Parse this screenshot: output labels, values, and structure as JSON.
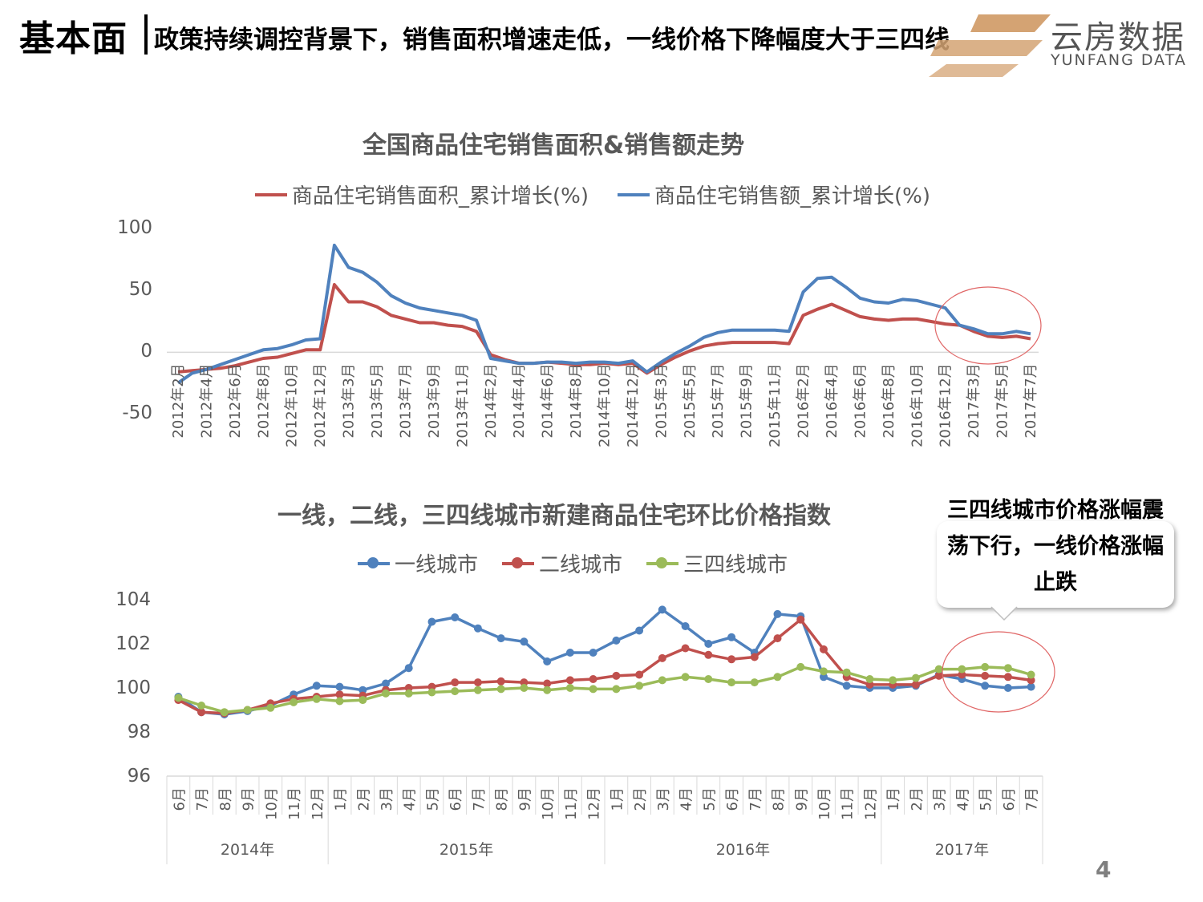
{
  "header": {
    "main_title": "基本面",
    "subtitle": "政策持续调控背景下，销售面积增速走低，一线价格下降幅度大于三四线"
  },
  "logo": {
    "cn": "云房数据",
    "en": "YUNFANG DATA",
    "brand_color": "#d4a373"
  },
  "callout": {
    "text": "三四线城市价格涨幅震荡下行，一线价格涨幅止跌"
  },
  "page_number": "4",
  "chart_data": [
    {
      "type": "line",
      "title": "全国商品住宅销售面积&销售额走势",
      "ylim": [
        -50,
        100
      ],
      "yticks": [
        "100",
        "50",
        "0",
        "-50"
      ],
      "categories": [
        "2012年2月",
        "2012年3月",
        "2012年4月",
        "2012年5月",
        "2012年6月",
        "2012年7月",
        "2012年8月",
        "2012年9月",
        "2012年10月",
        "2012年11月",
        "2012年12月",
        "2013年2月",
        "2013年3月",
        "2013年4月",
        "2013年5月",
        "2013年6月",
        "2013年7月",
        "2013年8月",
        "2013年9月",
        "2013年10月",
        "2013年11月",
        "2013年12月",
        "2014年2月",
        "2014年3月",
        "2014年4月",
        "2014年5月",
        "2014年6月",
        "2014年7月",
        "2014年8月",
        "2014年9月",
        "2014年10月",
        "2014年11月",
        "2014年12月",
        "2015年2月",
        "2015年3月",
        "2015年4月",
        "2015年5月",
        "2015年6月",
        "2015年7月",
        "2015年8月",
        "2015年9月",
        "2015年10月",
        "2015年11月",
        "2015年12月",
        "2016年2月",
        "2016年3月",
        "2016年4月",
        "2016年5月",
        "2016年6月",
        "2016年7月",
        "2016年8月",
        "2016年9月",
        "2016年10月",
        "2016年11月",
        "2016年12月",
        "2017年2月",
        "2017年3月",
        "2017年4月",
        "2017年5月",
        "2017年6月",
        "2017年7月"
      ],
      "tick_labels": [
        "2012年2月",
        "2012年4月",
        "2012年6月",
        "2012年8月",
        "2012年10月",
        "2012年12月",
        "2013年3月",
        "2013年5月",
        "2013年7月",
        "2013年9月",
        "2013年11月",
        "2014年2月",
        "2014年4月",
        "2014年6月",
        "2014年8月",
        "2014年10月",
        "2014年12月",
        "2015年3月",
        "2015年5月",
        "2015年7月",
        "2015年9月",
        "2015年11月",
        "2016年2月",
        "2016年4月",
        "2016年6月",
        "2016年8月",
        "2016年10月",
        "2016年12月",
        "2017年3月",
        "2017年5月",
        "2017年7月"
      ],
      "series": [
        {
          "name": "商品住宅销售面积_累计增长(%)",
          "color": "#c0504d",
          "values": [
            -16,
            -15,
            -14,
            -13,
            -11,
            -8,
            -5,
            -4,
            -1,
            2,
            2,
            55,
            41,
            41,
            37,
            30,
            27,
            24,
            24,
            22,
            21,
            17,
            -2,
            -6,
            -9,
            -9,
            -8,
            -9,
            -10,
            -10,
            -9,
            -10,
            -9,
            -17,
            -10,
            -4,
            1,
            5,
            7,
            8,
            8,
            8,
            8,
            7,
            30,
            35,
            39,
            34,
            29,
            27,
            26,
            27,
            27,
            25,
            23,
            22,
            17,
            13,
            12,
            13,
            11
          ]
        },
        {
          "name": "商品住宅销售额_累计增长(%)",
          "color": "#4f81bd",
          "values": [
            -25,
            -17,
            -14,
            -10,
            -6,
            -2,
            2,
            3,
            6,
            10,
            11,
            87,
            69,
            65,
            57,
            46,
            40,
            36,
            34,
            32,
            30,
            26,
            -5,
            -7,
            -9,
            -9,
            -8,
            -8,
            -9,
            -8,
            -8,
            -9,
            -7,
            -16,
            -8,
            -1,
            5,
            12,
            16,
            18,
            18,
            18,
            18,
            17,
            49,
            60,
            61,
            53,
            44,
            41,
            40,
            43,
            42,
            39,
            36,
            22,
            19,
            15,
            15,
            17,
            15
          ]
        }
      ]
    },
    {
      "type": "line",
      "title": "一线，二线，三四线城市新建商品住宅环比价格指数",
      "ylim": [
        96,
        104
      ],
      "yticks": [
        "104",
        "102",
        "100",
        "98",
        "96"
      ],
      "months": [
        "6月",
        "7月",
        "8月",
        "9月",
        "10月",
        "11月",
        "12月",
        "1月",
        "2月",
        "3月",
        "4月",
        "5月",
        "6月",
        "7月",
        "8月",
        "9月",
        "10月",
        "11月",
        "12月",
        "1月",
        "2月",
        "3月",
        "4月",
        "5月",
        "6月",
        "7月",
        "8月",
        "9月",
        "10月",
        "11月",
        "12月",
        "1月",
        "2月",
        "3月",
        "4月",
        "5月",
        "6月",
        "7月"
      ],
      "years": [
        {
          "label": "2014年",
          "count": 7
        },
        {
          "label": "2015年",
          "count": 12
        },
        {
          "label": "2016年",
          "count": 12
        },
        {
          "label": "2017年",
          "count": 7
        }
      ],
      "series": [
        {
          "name": "一线城市",
          "color": "#4f81bd",
          "values": [
            99.6,
            98.9,
            98.8,
            98.95,
            99.2,
            99.7,
            100.1,
            100.05,
            99.9,
            100.2,
            100.9,
            103.0,
            103.2,
            102.7,
            102.25,
            102.1,
            101.2,
            101.6,
            101.6,
            102.15,
            102.6,
            103.55,
            102.8,
            102.0,
            102.3,
            101.6,
            103.35,
            103.25,
            100.5,
            100.1,
            100.0,
            100.0,
            100.1,
            100.6,
            100.4,
            100.1,
            100.0,
            100.05
          ]
        },
        {
          "name": "二线城市",
          "color": "#c0504d",
          "values": [
            99.45,
            98.9,
            98.85,
            99.0,
            99.3,
            99.5,
            99.6,
            99.7,
            99.65,
            99.9,
            100.0,
            100.05,
            100.25,
            100.25,
            100.3,
            100.25,
            100.2,
            100.35,
            100.4,
            100.55,
            100.6,
            101.35,
            101.8,
            101.5,
            101.3,
            101.4,
            102.25,
            103.1,
            101.75,
            100.5,
            100.15,
            100.15,
            100.15,
            100.55,
            100.6,
            100.55,
            100.5,
            100.35
          ]
        },
        {
          "name": "三四线城市",
          "color": "#9bbb59",
          "values": [
            99.55,
            99.2,
            98.9,
            99.0,
            99.1,
            99.35,
            99.5,
            99.4,
            99.45,
            99.75,
            99.75,
            99.8,
            99.85,
            99.9,
            99.95,
            100.0,
            99.9,
            100.0,
            99.95,
            99.95,
            100.1,
            100.35,
            100.5,
            100.4,
            100.25,
            100.25,
            100.5,
            100.95,
            100.75,
            100.7,
            100.4,
            100.35,
            100.45,
            100.85,
            100.85,
            100.95,
            100.9,
            100.6
          ]
        }
      ]
    }
  ]
}
